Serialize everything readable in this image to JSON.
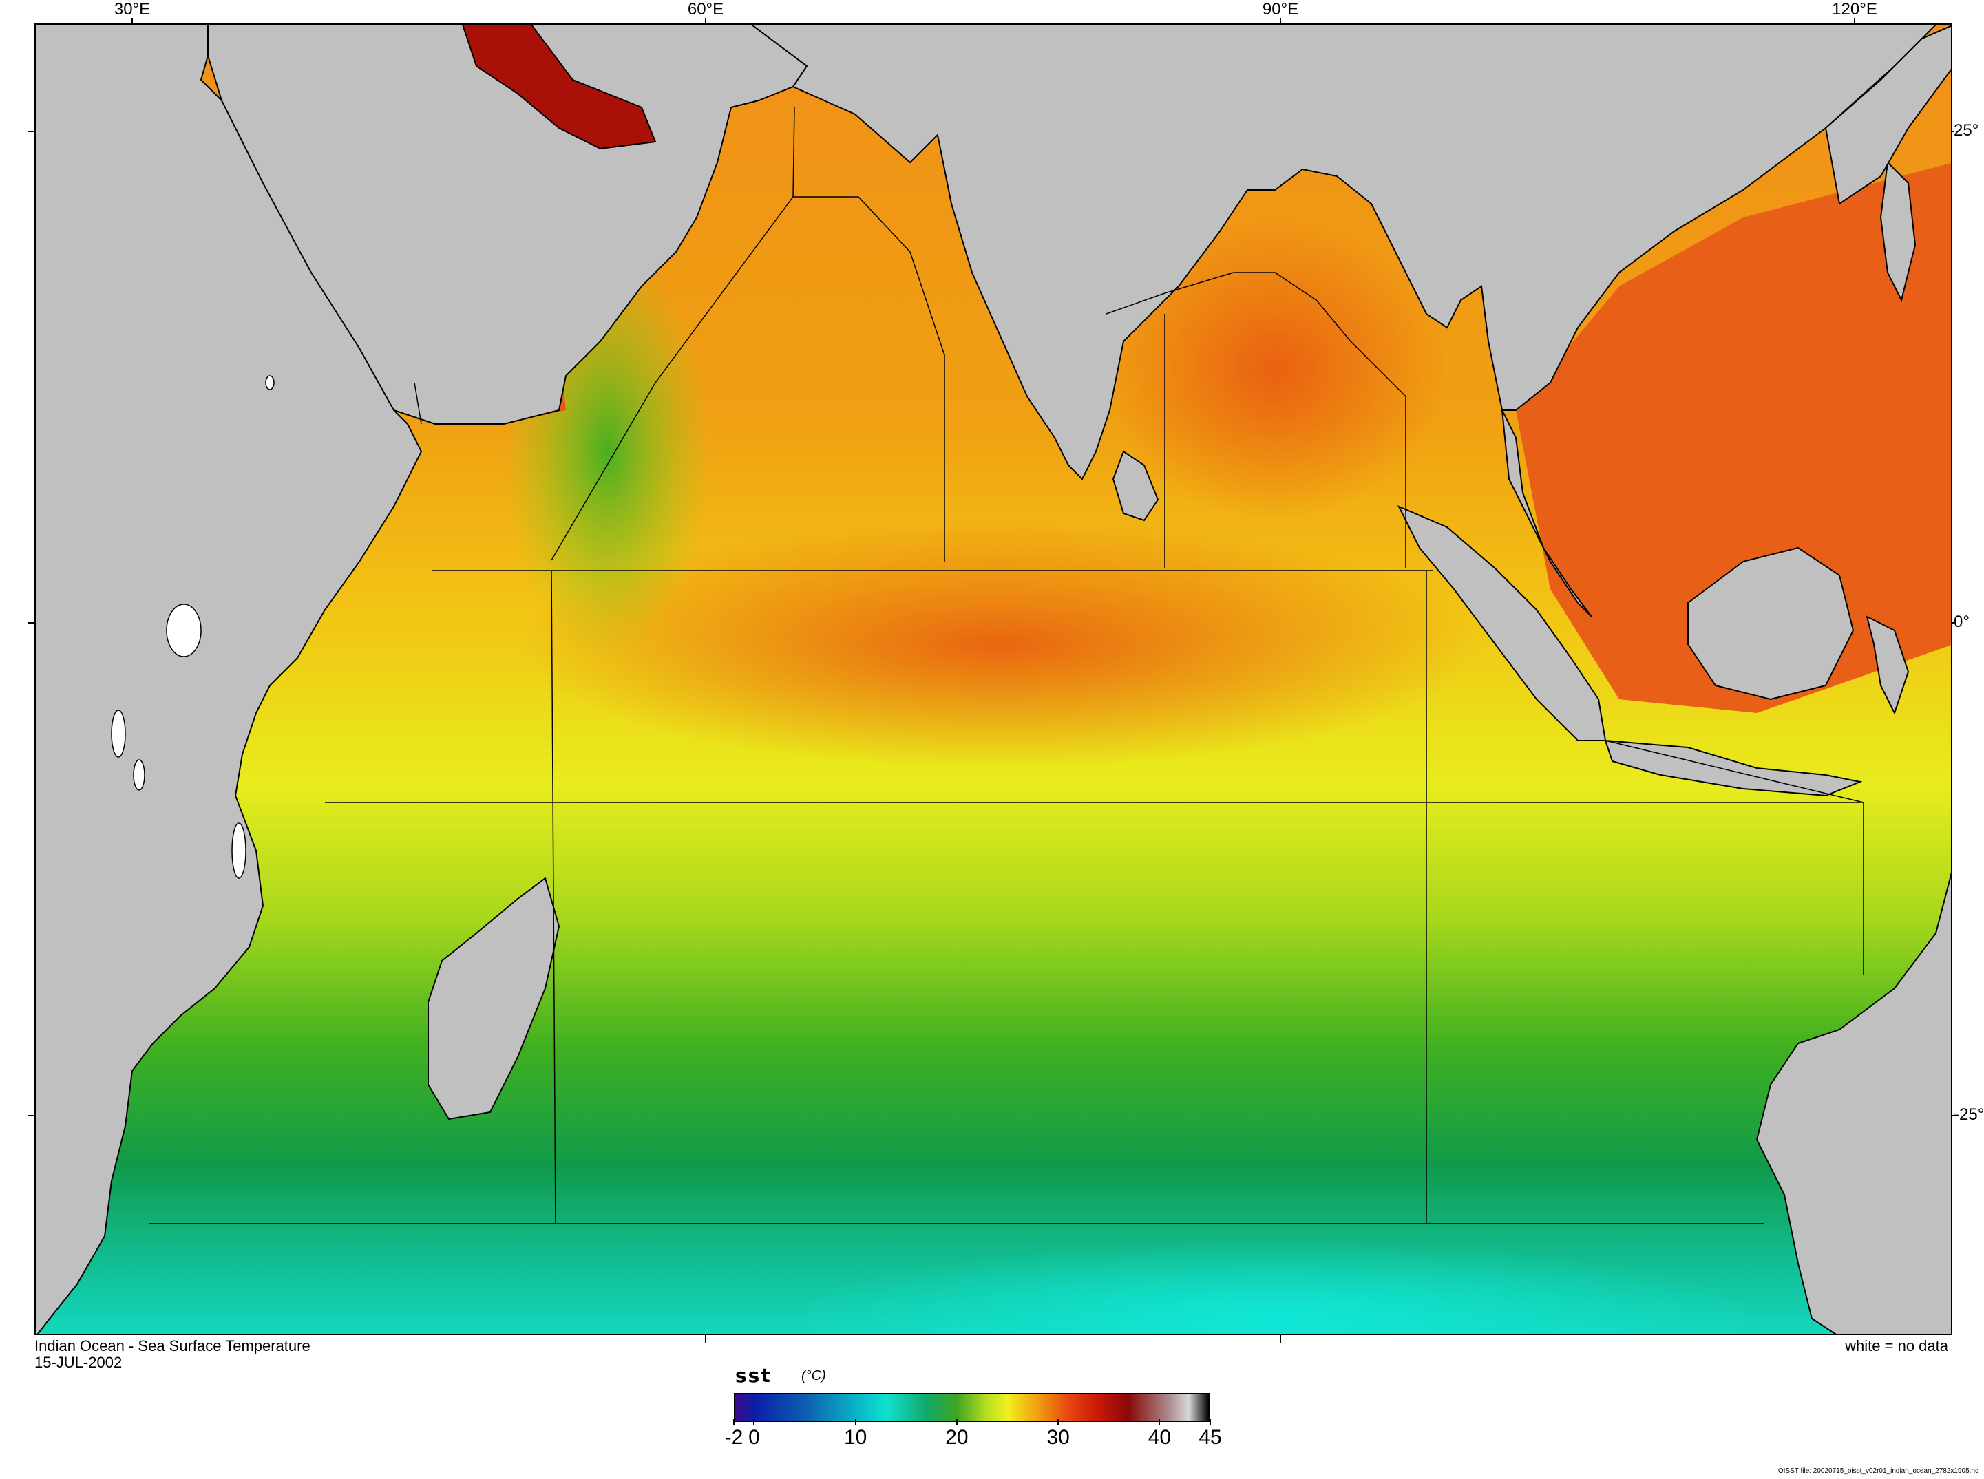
{
  "map": {
    "region": "Indian Ocean",
    "variable": "sst",
    "colors": {
      "land": "#c0c0c0",
      "coastline": "#000000",
      "no_data": "#ffffff",
      "box_lines": "#000000"
    }
  },
  "axes": {
    "longitude_labels": [
      "30°E",
      "60°E",
      "90°E",
      "120°E"
    ],
    "latitude_labels": [
      "25°",
      "0°",
      "-25°"
    ]
  },
  "captions": {
    "title": "Indian Ocean - Sea Surface Temperature",
    "date": "15-JUL-2002",
    "no_data_note": "white = no data",
    "file_note": "OISST file: 20020715_oisst_v02r01_indian_ocean_2782x1905.nc"
  },
  "colorbar": {
    "name": "sst",
    "units": "(°C)",
    "range": [
      -2,
      45
    ],
    "tick_labels": [
      "-2",
      "0",
      "10",
      "20",
      "30",
      "40",
      "45"
    ],
    "tick_values": [
      -2,
      0,
      10,
      20,
      30,
      40,
      45
    ],
    "stops": [
      {
        "value": -2,
        "color": "#3a0a8c"
      },
      {
        "value": 0,
        "color": "#0b1fa8"
      },
      {
        "value": 5,
        "color": "#0d5fb0"
      },
      {
        "value": 10,
        "color": "#0ab4c4"
      },
      {
        "value": 13,
        "color": "#12e0d0"
      },
      {
        "value": 17,
        "color": "#13a86a"
      },
      {
        "value": 20,
        "color": "#3fa520"
      },
      {
        "value": 23,
        "color": "#b8e020"
      },
      {
        "value": 25,
        "color": "#f0f020"
      },
      {
        "value": 28,
        "color": "#f0a010"
      },
      {
        "value": 31,
        "color": "#e84810"
      },
      {
        "value": 34,
        "color": "#c81808"
      },
      {
        "value": 37,
        "color": "#8a0808"
      },
      {
        "value": 41,
        "color": "#aa8a8a"
      },
      {
        "value": 43,
        "color": "#d8d8d8"
      },
      {
        "value": 45,
        "color": "#000000"
      }
    ]
  }
}
